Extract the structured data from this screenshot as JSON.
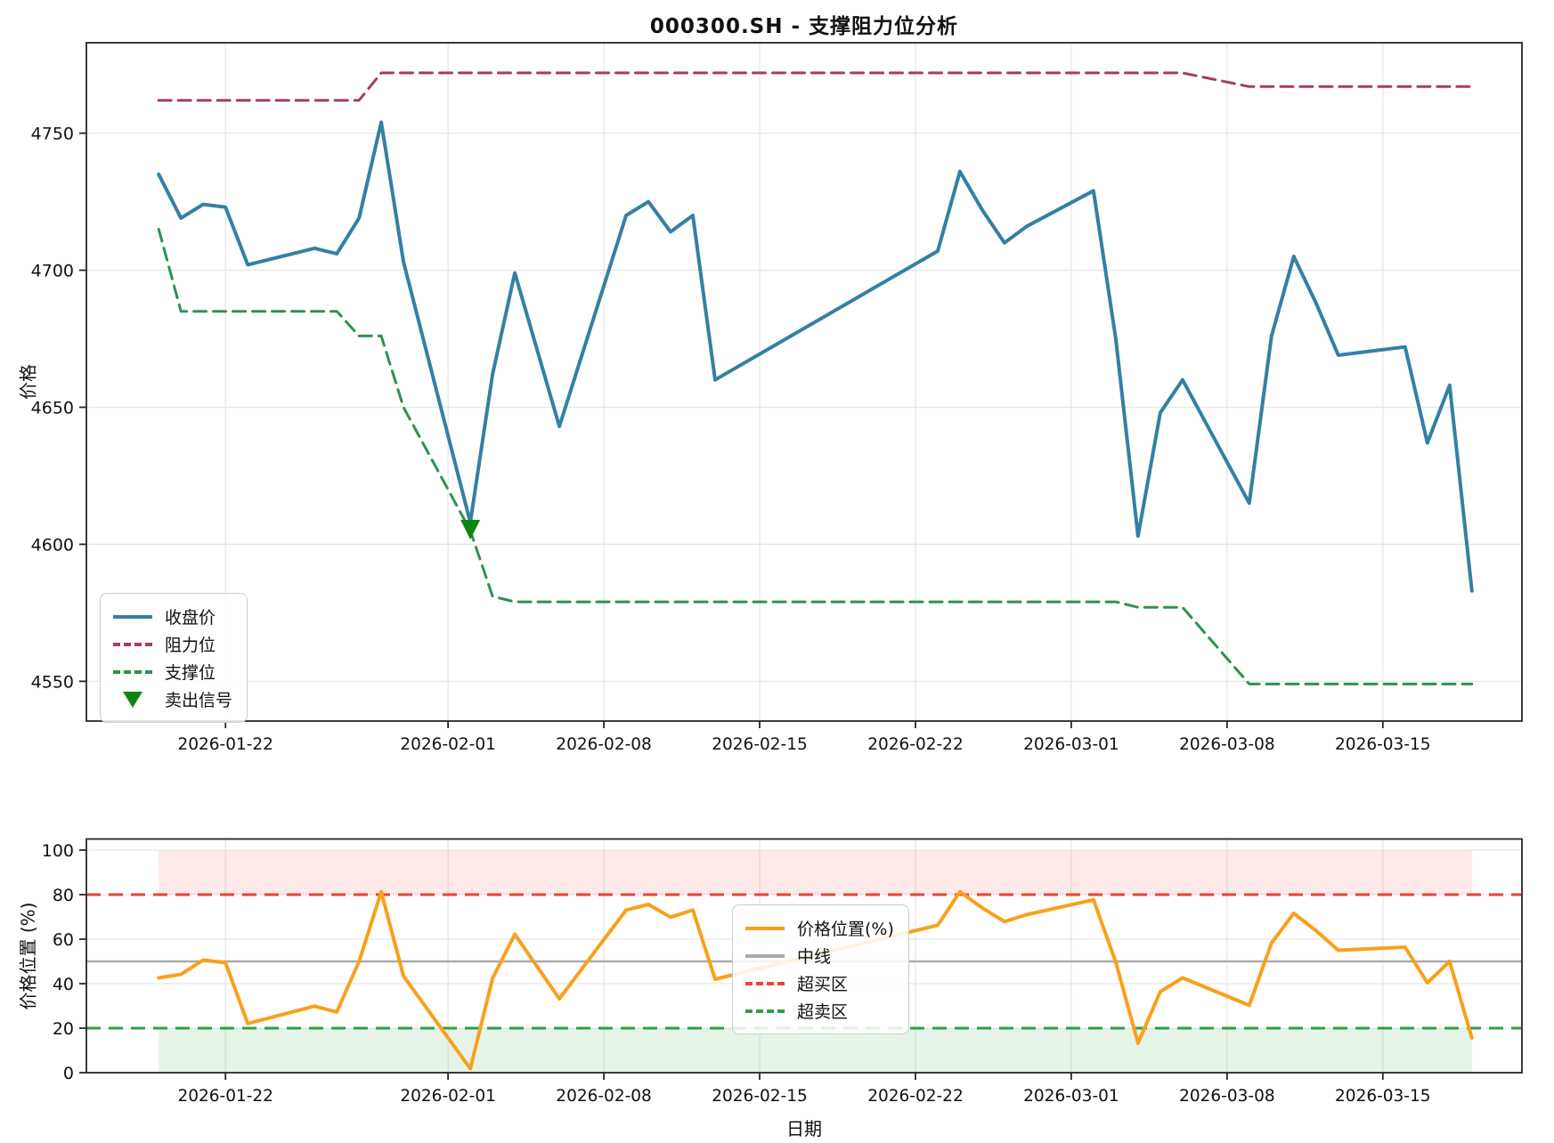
{
  "title": "000300.SH - 支撑阻力位分析",
  "colors": {
    "close": "#3380A4",
    "resistance": "#A93A68",
    "support": "#2E9151",
    "sell_signal": "#0E850E",
    "position": "#F9A01B",
    "midline": "#ABABAB",
    "overbought": "#EE4035",
    "oversold": "#2CA048",
    "overbought_band": "rgba(239,83,80,0.13)",
    "oversold_band": "rgba(102,187,106,0.16)",
    "grid": "#E7E7E7",
    "spine": "#262626",
    "text": "#111111"
  },
  "chart_data": [
    {
      "type": "line",
      "title": "000300.SH - 支撑阻力位分析",
      "ylabel": "价格",
      "xlabel": "",
      "grid": "on",
      "legend_position": "lower left",
      "ylim": [
        4535.5,
        4783
      ],
      "y_ticks": [
        4550,
        4600,
        4650,
        4700,
        4750
      ],
      "x_ticks": [
        "2026-01-22",
        "2026-02-01",
        "2026-02-08",
        "2026-02-15",
        "2026-02-22",
        "2026-03-01",
        "2026-03-08",
        "2026-03-15"
      ],
      "x_dates": [
        "2026-01-19",
        "2026-01-20",
        "2026-01-21",
        "2026-01-22",
        "2026-01-23",
        "2026-01-26",
        "2026-01-27",
        "2026-01-28",
        "2026-01-29",
        "2026-01-30",
        "2026-02-02",
        "2026-02-03",
        "2026-02-04",
        "2026-02-05",
        "2026-02-06",
        "2026-02-09",
        "2026-02-10",
        "2026-02-11",
        "2026-02-12",
        "2026-02-13",
        "2026-02-23",
        "2026-02-24",
        "2026-02-25",
        "2026-02-26",
        "2026-02-27",
        "2026-03-02",
        "2026-03-03",
        "2026-03-04",
        "2026-03-05",
        "2026-03-06",
        "2026-03-09",
        "2026-03-10",
        "2026-03-11",
        "2026-03-12",
        "2026-03-13",
        "2026-03-16",
        "2026-03-17",
        "2026-03-18",
        "2026-03-19"
      ],
      "series": [
        {
          "name": "收盘价",
          "color": "#3380A4",
          "style": "solid",
          "width": 4,
          "values": [
            4735,
            4719,
            4724,
            4723,
            4702,
            4708,
            4706,
            4719,
            4754,
            4703,
            4608,
            4662,
            4699,
            4671,
            4643,
            4720,
            4725,
            4714,
            4720,
            4660,
            4707,
            4736,
            4722,
            4710,
            4716,
            4729,
            4675,
            4603,
            4648,
            4660,
            4615,
            4676,
            4705,
            4688,
            4669,
            4672,
            4637,
            4658,
            4583
          ]
        },
        {
          "name": "阻力位",
          "color": "#A93A68",
          "style": "dashed",
          "width": 3,
          "values": [
            4762,
            4762,
            4762,
            4762,
            4762,
            4762,
            4762,
            4762,
            4772,
            4772,
            4772,
            4772,
            4772,
            4772,
            4772,
            4772,
            4772,
            4772,
            4772,
            4772,
            4772,
            4772,
            4772,
            4772,
            4772,
            4772,
            4772,
            4772,
            4772,
            4772,
            4767,
            4767,
            4767,
            4767,
            4767,
            4767,
            4767,
            4767,
            4767
          ]
        },
        {
          "name": "支撑位",
          "color": "#2E9151",
          "style": "dashed",
          "width": 3,
          "values": [
            4715,
            4685,
            4685,
            4685,
            4685,
            4685,
            4685,
            4676,
            4676,
            4650,
            4605,
            4581,
            4579,
            4579,
            4579,
            4579,
            4579,
            4579,
            4579,
            4579,
            4579,
            4579,
            4579,
            4579,
            4579,
            4579,
            4579,
            4577,
            4577,
            4577,
            4549,
            4549,
            4549,
            4549,
            4549,
            4549,
            4549,
            4549,
            4549
          ]
        }
      ],
      "markers": [
        {
          "name": "卖出信号",
          "shape": "triangle-down",
          "color": "#0E850E",
          "date": "2026-02-02",
          "value": 4606
        }
      ],
      "legend": [
        {
          "label": "收盘价",
          "color": "#3380A4",
          "style": "solid"
        },
        {
          "label": "阻力位",
          "color": "#A93A68",
          "style": "dashed"
        },
        {
          "label": "支撑位",
          "color": "#2E9151",
          "style": "dashed"
        },
        {
          "label": "卖出信号",
          "color": "#0E850E",
          "style": "marker"
        }
      ]
    },
    {
      "type": "line",
      "title": "",
      "ylabel": "价格位置 (%)",
      "xlabel": "日期",
      "grid": "on",
      "legend_position": "center",
      "ylim": [
        0,
        105
      ],
      "y_ticks": [
        0,
        20,
        40,
        60,
        80,
        100
      ],
      "x_ticks": [
        "2026-01-22",
        "2026-02-01",
        "2026-02-08",
        "2026-02-15",
        "2026-02-22",
        "2026-03-01",
        "2026-03-08",
        "2026-03-15"
      ],
      "x_dates": [
        "2026-01-19",
        "2026-01-20",
        "2026-01-21",
        "2026-01-22",
        "2026-01-23",
        "2026-01-26",
        "2026-01-27",
        "2026-01-28",
        "2026-01-29",
        "2026-01-30",
        "2026-02-02",
        "2026-02-03",
        "2026-02-04",
        "2026-02-05",
        "2026-02-06",
        "2026-02-09",
        "2026-02-10",
        "2026-02-11",
        "2026-02-12",
        "2026-02-13",
        "2026-02-23",
        "2026-02-24",
        "2026-02-25",
        "2026-02-26",
        "2026-02-27",
        "2026-03-02",
        "2026-03-03",
        "2026-03-04",
        "2026-03-05",
        "2026-03-06",
        "2026-03-09",
        "2026-03-10",
        "2026-03-11",
        "2026-03-12",
        "2026-03-13",
        "2026-03-16",
        "2026-03-17",
        "2026-03-18",
        "2026-03-19"
      ],
      "series": [
        {
          "name": "价格位置(%)",
          "color": "#F9A01B",
          "style": "solid",
          "width": 4,
          "values": [
            42.6,
            44.2,
            50.6,
            49.4,
            22.1,
            29.9,
            27.3,
            50.0,
            81.3,
            43.4,
            1.8,
            42.4,
            62.2,
            47.7,
            33.2,
            73.1,
            75.6,
            69.9,
            73.1,
            42.0,
            66.3,
            81.3,
            74.1,
            67.9,
            71.0,
            77.7,
            49.7,
            13.3,
            36.4,
            42.6,
            30.3,
            58.3,
            71.6,
            63.8,
            55.0,
            56.4,
            40.4,
            50.0,
            15.6
          ]
        }
      ],
      "ref_lines": [
        {
          "label": "中线",
          "value": 50,
          "color": "#ABABAB",
          "style": "solid",
          "width": 2.5
        },
        {
          "label": "超买区",
          "value": 80,
          "color": "#EE4035",
          "style": "dashed",
          "width": 3
        },
        {
          "label": "超卖区",
          "value": 20,
          "color": "#2CA048",
          "style": "dashed",
          "width": 3
        }
      ],
      "bands": [
        {
          "name": "overbought-band",
          "from": 80,
          "to": 100,
          "color": "rgba(239,83,80,0.13)"
        },
        {
          "name": "oversold-band",
          "from": 0,
          "to": 20,
          "color": "rgba(102,187,106,0.16)"
        }
      ],
      "legend": [
        {
          "label": "价格位置(%)",
          "color": "#F9A01B",
          "style": "solid"
        },
        {
          "label": "中线",
          "color": "#ABABAB",
          "style": "solid"
        },
        {
          "label": "超买区",
          "color": "#EE4035",
          "style": "dashed"
        },
        {
          "label": "超卖区",
          "color": "#2CA048",
          "style": "dashed"
        }
      ]
    }
  ]
}
